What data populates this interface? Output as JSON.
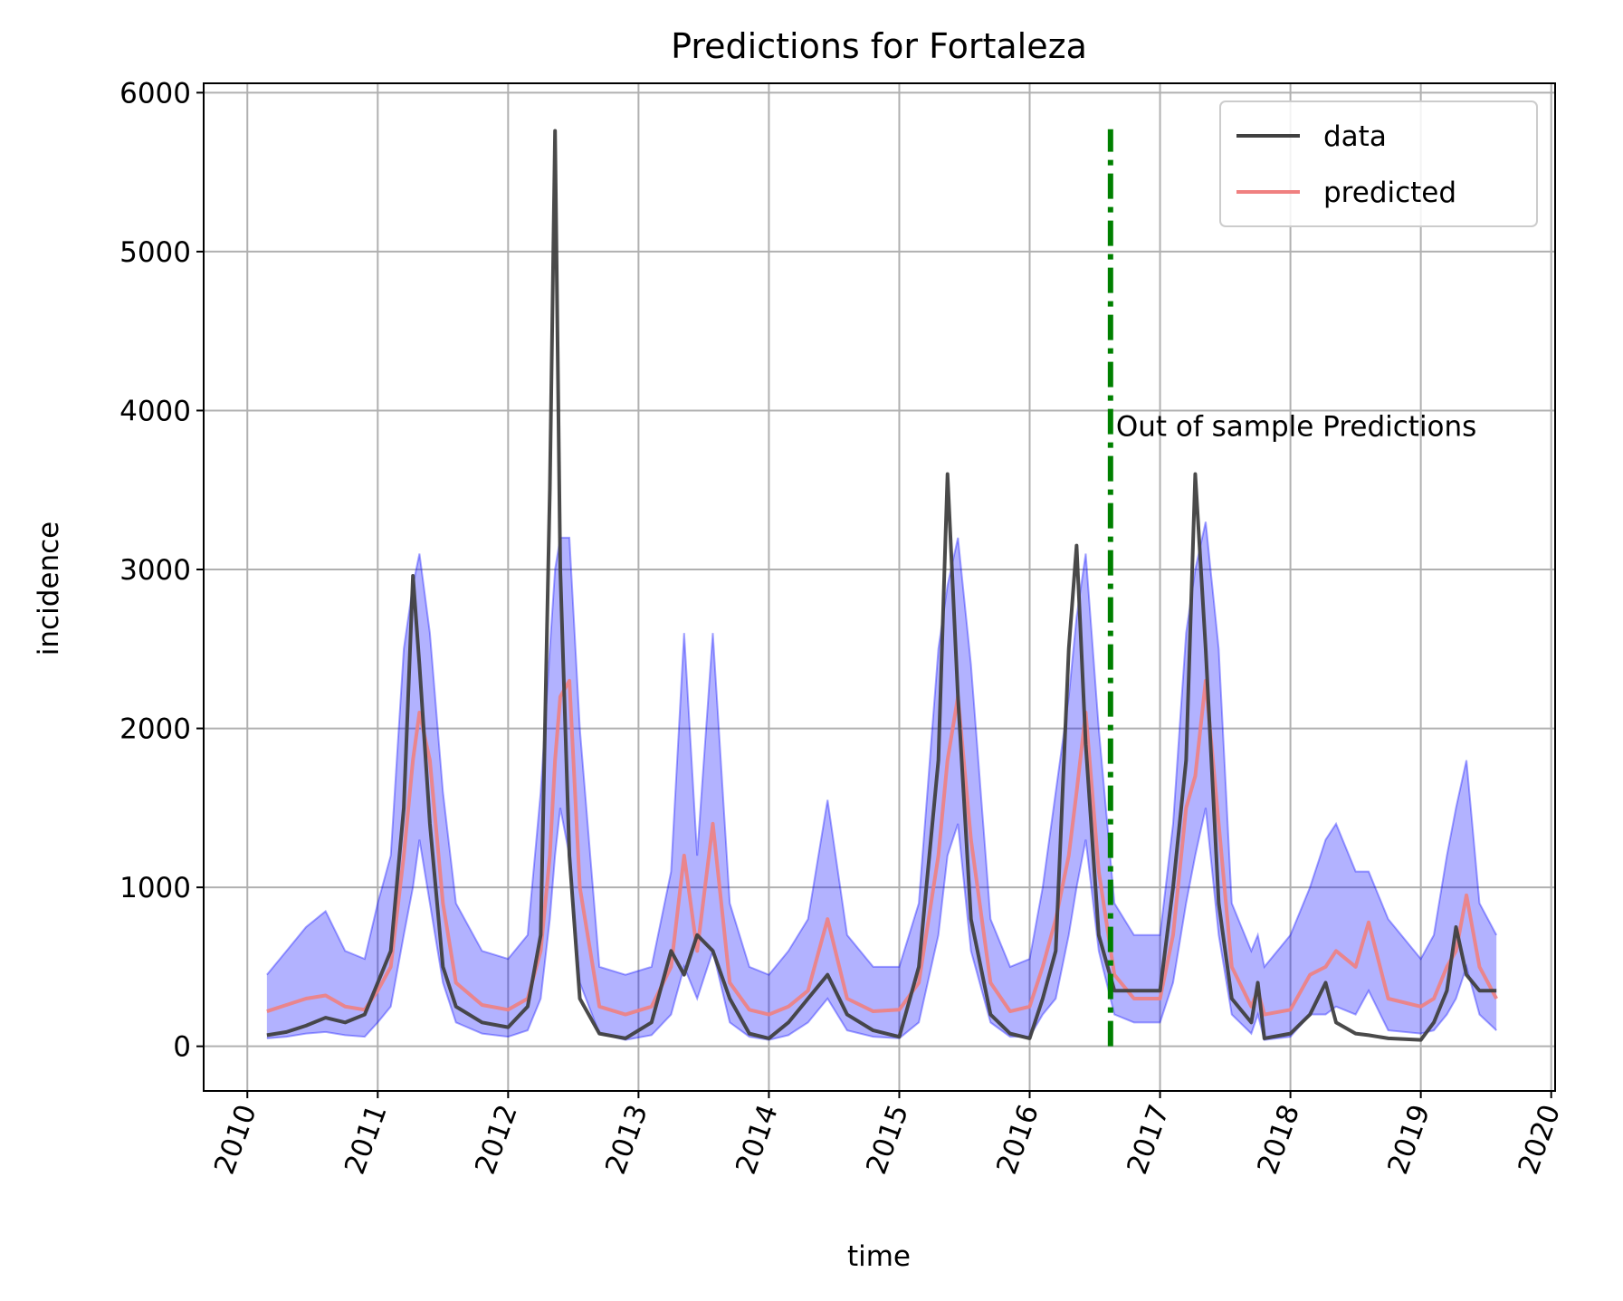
{
  "chart_data": {
    "type": "line",
    "title": "Predictions for Fortaleza",
    "xlabel": "time",
    "ylabel": "incidence",
    "x": [
      2010.15,
      2010.3,
      2010.45,
      2010.6,
      2010.75,
      2010.9,
      2011.0,
      2011.1,
      2011.2,
      2011.27,
      2011.32,
      2011.4,
      2011.5,
      2011.6,
      2011.8,
      2012.0,
      2012.15,
      2012.25,
      2012.32,
      2012.36,
      2012.4,
      2012.47,
      2012.55,
      2012.7,
      2012.9,
      2013.1,
      2013.25,
      2013.35,
      2013.45,
      2013.57,
      2013.7,
      2013.85,
      2014.0,
      2014.15,
      2014.3,
      2014.45,
      2014.6,
      2014.8,
      2015.0,
      2015.15,
      2015.3,
      2015.37,
      2015.45,
      2015.55,
      2015.7,
      2015.85,
      2016.0,
      2016.1,
      2016.2,
      2016.3,
      2016.36,
      2016.43,
      2016.53,
      2016.65,
      2016.8,
      2017.0,
      2017.1,
      2017.2,
      2017.27,
      2017.35,
      2017.45,
      2017.55,
      2017.7,
      2017.75,
      2017.8,
      2018.0,
      2018.15,
      2018.27,
      2018.35,
      2018.5,
      2018.6,
      2018.75,
      2019.0,
      2019.1,
      2019.2,
      2019.27,
      2019.35,
      2019.45,
      2019.58
    ],
    "series": [
      {
        "name": "data",
        "color": "#404040",
        "values": [
          70,
          90,
          130,
          180,
          150,
          200,
          400,
          600,
          1500,
          2960,
          2400,
          1400,
          500,
          250,
          150,
          120,
          250,
          700,
          3500,
          5760,
          3000,
          1200,
          300,
          80,
          50,
          150,
          600,
          450,
          700,
          600,
          300,
          80,
          50,
          150,
          300,
          450,
          200,
          100,
          60,
          500,
          1800,
          3600,
          2200,
          800,
          200,
          80,
          50,
          300,
          600,
          2500,
          3150,
          1900,
          700,
          350,
          350,
          350,
          1000,
          1800,
          3600,
          2500,
          900,
          300,
          150,
          400,
          50,
          80,
          200,
          400,
          150,
          80,
          70,
          50,
          40,
          150,
          350,
          750,
          450,
          350,
          350
        ]
      },
      {
        "name": "predicted",
        "color": "#f08080",
        "values": [
          220,
          260,
          300,
          320,
          250,
          230,
          350,
          500,
          1200,
          1800,
          2100,
          1800,
          900,
          400,
          260,
          230,
          300,
          600,
          1200,
          1800,
          2200,
          2300,
          1000,
          250,
          200,
          250,
          500,
          1200,
          600,
          1400,
          400,
          230,
          200,
          250,
          350,
          800,
          300,
          220,
          230,
          400,
          1200,
          1800,
          2200,
          1300,
          400,
          220,
          250,
          500,
          800,
          1200,
          1600,
          2100,
          1100,
          450,
          300,
          300,
          700,
          1500,
          1700,
          2300,
          1400,
          500,
          250,
          350,
          200,
          230,
          450,
          500,
          600,
          500,
          780,
          300,
          250,
          300,
          500,
          600,
          950,
          500,
          300
        ]
      }
    ],
    "band": {
      "color": "#0000ff",
      "lower": [
        50,
        60,
        80,
        90,
        70,
        60,
        150,
        250,
        700,
        1000,
        1300,
        900,
        400,
        150,
        80,
        60,
        100,
        300,
        800,
        1200,
        1500,
        1200,
        400,
        80,
        40,
        70,
        200,
        500,
        300,
        600,
        150,
        60,
        40,
        70,
        150,
        300,
        100,
        60,
        50,
        150,
        700,
        1200,
        1400,
        600,
        150,
        60,
        60,
        200,
        300,
        700,
        1000,
        1300,
        600,
        200,
        150,
        150,
        400,
        900,
        1200,
        1500,
        700,
        200,
        80,
        200,
        40,
        60,
        200,
        200,
        250,
        200,
        350,
        100,
        80,
        100,
        200,
        300,
        500,
        200,
        100
      ],
      "upper": [
        450,
        600,
        750,
        850,
        600,
        550,
        900,
        1200,
        2500,
        2900,
        3100,
        2600,
        1600,
        900,
        600,
        550,
        700,
        1600,
        2500,
        3000,
        3200,
        3200,
        2000,
        500,
        450,
        500,
        1100,
        2600,
        1200,
        2600,
        900,
        500,
        450,
        600,
        800,
        1550,
        700,
        500,
        500,
        900,
        2500,
        2900,
        3200,
        2400,
        800,
        500,
        550,
        1000,
        1600,
        2200,
        2700,
        3100,
        2000,
        900,
        700,
        700,
        1400,
        2600,
        3000,
        3300,
        2500,
        900,
        600,
        700,
        500,
        700,
        1000,
        1300,
        1400,
        1100,
        1100,
        800,
        550,
        700,
        1200,
        1500,
        1800,
        900,
        700
      ]
    },
    "vline": {
      "x": 2016.62,
      "ymin": 0,
      "ymax": 5770,
      "color": "#008000"
    },
    "annotation": "Out of sample Predictions",
    "xlim": [
      2009.665,
      2020.03
    ],
    "ylim": [
      -281,
      6059
    ],
    "xticks": [
      2010,
      2011,
      2012,
      2013,
      2014,
      2015,
      2016,
      2017,
      2018,
      2019,
      2020
    ],
    "yticks": [
      0,
      1000,
      2000,
      3000,
      4000,
      5000,
      6000
    ],
    "grid": true,
    "legend": "upper right"
  }
}
